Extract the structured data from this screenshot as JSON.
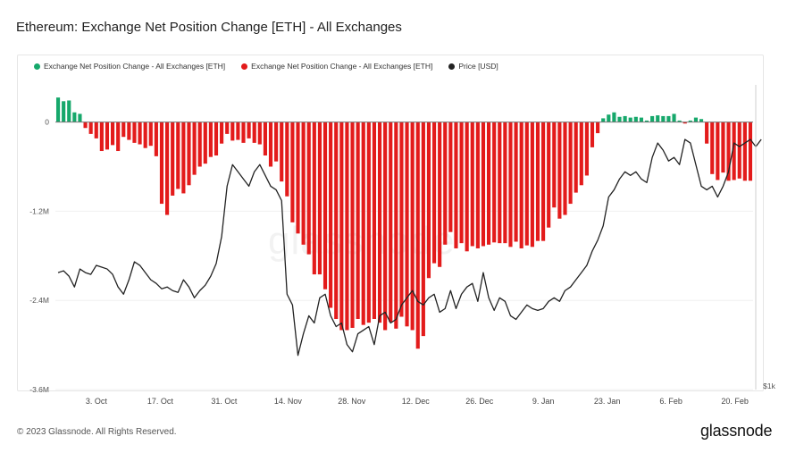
{
  "title": "Ethereum: Exchange Net Position Change [ETH] - All Exchanges",
  "footer": "© 2023 Glassnode. All Rights Reserved.",
  "brand": "glassnode",
  "watermark": "glassnode",
  "legend": [
    {
      "label": "Exchange Net Position Change - All Exchanges [ETH]",
      "color": "#16a86b"
    },
    {
      "label": "Exchange Net Position Change - All Exchanges [ETH]",
      "color": "#e31b1b"
    },
    {
      "label": "Price [USD]",
      "color": "#222222"
    }
  ],
  "chart_data": {
    "type": "bar",
    "x_start": "2022-09-24",
    "x_end": "2023-02-24",
    "x_tick_labels": [
      "3. Oct",
      "17. Oct",
      "31. Oct",
      "14. Nov",
      "28. Nov",
      "12. Dec",
      "26. Dec",
      "9. Jan",
      "23. Jan",
      "6. Feb",
      "20. Feb"
    ],
    "y_tick_labels": [
      "0",
      "-1.2M",
      "-2.4M",
      "-3.6M"
    ],
    "ylim": [
      -3600000,
      500000
    ],
    "right_axis_label": "$1k",
    "positive_color": "#16a86b",
    "negative_color": "#e31b1b",
    "price_color": "#222222",
    "net_position_change": [
      330000,
      280000,
      290000,
      130000,
      110000,
      -80000,
      -160000,
      -220000,
      -390000,
      -370000,
      -310000,
      -390000,
      -200000,
      -240000,
      -280000,
      -300000,
      -350000,
      -320000,
      -460000,
      -1100000,
      -1250000,
      -990000,
      -900000,
      -960000,
      -850000,
      -710000,
      -600000,
      -560000,
      -470000,
      -450000,
      -290000,
      -160000,
      -250000,
      -240000,
      -280000,
      -220000,
      -280000,
      -300000,
      -450000,
      -600000,
      -530000,
      -800000,
      -1000000,
      -1350000,
      -1500000,
      -1650000,
      -1780000,
      -2050000,
      -2050000,
      -2250000,
      -2500000,
      -2650000,
      -2800000,
      -2800000,
      -2770000,
      -2650000,
      -2730000,
      -2700000,
      -2650000,
      -2700000,
      -2800000,
      -2690000,
      -2780000,
      -2620000,
      -2750000,
      -2800000,
      -3050000,
      -2880000,
      -2100000,
      -1900000,
      -1950000,
      -1650000,
      -1480000,
      -1700000,
      -1630000,
      -1740000,
      -1670000,
      -1700000,
      -1670000,
      -1650000,
      -1620000,
      -1630000,
      -1630000,
      -1680000,
      -1610000,
      -1700000,
      -1660000,
      -1680000,
      -1600000,
      -1600000,
      -1420000,
      -1150000,
      -1300000,
      -1250000,
      -1100000,
      -950000,
      -850000,
      -720000,
      -340000,
      -150000,
      50000,
      100000,
      130000,
      70000,
      80000,
      60000,
      70000,
      60000,
      20000,
      80000,
      90000,
      80000,
      80000,
      110000,
      20000,
      -20000,
      20000,
      60000,
      40000,
      -290000,
      -700000,
      -780000,
      -680000,
      -790000,
      -780000,
      -760000,
      -790000,
      -790000
    ],
    "price_usd": [
      1320,
      1325,
      1310,
      1280,
      1330,
      1320,
      1315,
      1340,
      1335,
      1330,
      1315,
      1280,
      1260,
      1300,
      1350,
      1340,
      1320,
      1300,
      1290,
      1275,
      1280,
      1270,
      1265,
      1300,
      1280,
      1250,
      1270,
      1285,
      1310,
      1345,
      1420,
      1560,
      1620,
      1600,
      1580,
      1560,
      1600,
      1620,
      1590,
      1560,
      1550,
      1520,
      1260,
      1230,
      1090,
      1150,
      1200,
      1180,
      1250,
      1260,
      1200,
      1170,
      1180,
      1120,
      1100,
      1150,
      1160,
      1170,
      1120,
      1200,
      1210,
      1180,
      1190,
      1230,
      1250,
      1270,
      1240,
      1230,
      1250,
      1260,
      1210,
      1220,
      1270,
      1220,
      1260,
      1280,
      1290,
      1240,
      1320,
      1250,
      1215,
      1250,
      1240,
      1200,
      1190,
      1210,
      1230,
      1220,
      1215,
      1220,
      1240,
      1250,
      1240,
      1270,
      1280,
      1300,
      1320,
      1340,
      1380,
      1410,
      1450,
      1530,
      1550,
      1580,
      1600,
      1590,
      1600,
      1580,
      1570,
      1640,
      1680,
      1660,
      1630,
      1640,
      1620,
      1690,
      1680,
      1620,
      1560,
      1550,
      1560,
      1530,
      1560,
      1600,
      1680,
      1670,
      1680,
      1690,
      1670,
      1690
    ]
  }
}
